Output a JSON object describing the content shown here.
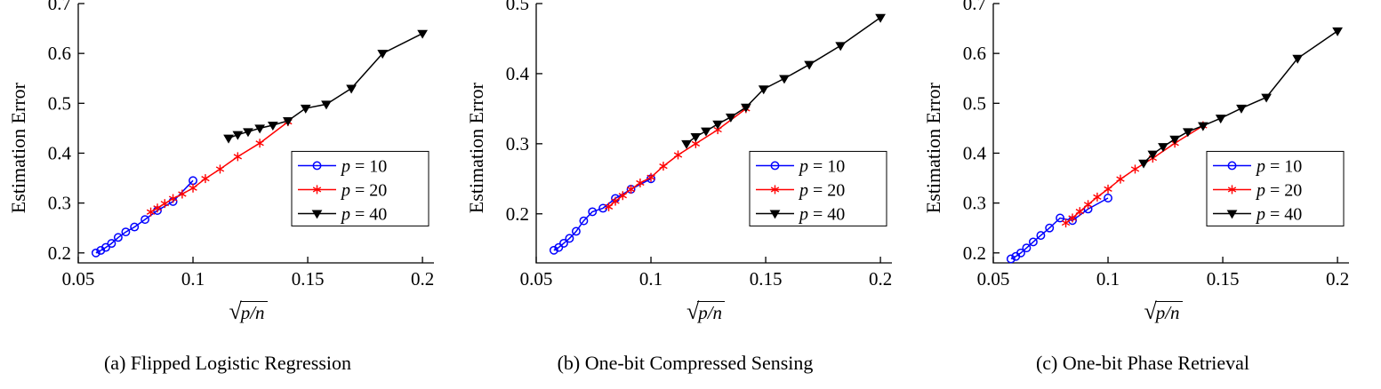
{
  "figure": {
    "captions": [
      "(a) Flipped Logistic Regression",
      "(b) One-bit Compressed Sensing",
      "(c) One-bit Phase Retrieval"
    ]
  },
  "chart_data": [
    {
      "type": "line",
      "title": "",
      "xlabel": {
        "text": "√(p/n)",
        "sign": "√",
        "radicand": "p/n"
      },
      "ylabel": "Estimation Error",
      "xlim": [
        0.05,
        0.205
      ],
      "ylim": [
        0.18,
        0.7
      ],
      "xtick_values": [
        0.05,
        0.1,
        0.15,
        0.2
      ],
      "xtick_labels": [
        "0.05",
        "0.1",
        "0.15",
        "0.2"
      ],
      "ytick_values": [
        0.2,
        0.3,
        0.4,
        0.5,
        0.6,
        0.7
      ],
      "ytick_labels": [
        "0.2",
        "0.3",
        "0.4",
        "0.5",
        "0.6",
        "0.7"
      ],
      "grid": false,
      "legend_position": "right-center",
      "series": [
        {
          "name": "p = 10",
          "color": "#0000ff",
          "marker": "circle",
          "x": [
            0.0577,
            0.0598,
            0.062,
            0.0645,
            0.0674,
            0.0707,
            0.0745,
            0.0791,
            0.0845,
            0.0913,
            0.1
          ],
          "y": [
            0.2,
            0.205,
            0.211,
            0.219,
            0.231,
            0.242,
            0.252,
            0.267,
            0.285,
            0.303,
            0.345
          ]
        },
        {
          "name": "p = 20",
          "color": "#ff0000",
          "marker": "asterisk",
          "x": [
            0.0816,
            0.0845,
            0.0877,
            0.0913,
            0.0953,
            0.1,
            0.1054,
            0.1118,
            0.1195,
            0.1291,
            0.1414
          ],
          "y": [
            0.282,
            0.29,
            0.299,
            0.309,
            0.318,
            0.33,
            0.349,
            0.368,
            0.393,
            0.42,
            0.463
          ]
        },
        {
          "name": "p = 40",
          "color": "#000000",
          "marker": "triangle-down",
          "x": [
            0.1155,
            0.1195,
            0.124,
            0.1291,
            0.1348,
            0.1414,
            0.1491,
            0.1581,
            0.169,
            0.1826,
            0.2
          ],
          "y": [
            0.43,
            0.437,
            0.443,
            0.45,
            0.456,
            0.465,
            0.49,
            0.498,
            0.53,
            0.6,
            0.64
          ]
        }
      ]
    },
    {
      "type": "line",
      "title": "",
      "xlabel": {
        "text": "√(p/n)",
        "sign": "√",
        "radicand": "p/n"
      },
      "ylabel": "Estimation Error",
      "xlim": [
        0.05,
        0.205
      ],
      "ylim": [
        0.13,
        0.5
      ],
      "xtick_values": [
        0.05,
        0.1,
        0.15,
        0.2
      ],
      "xtick_labels": [
        "0.05",
        "0.1",
        "0.15",
        "0.2"
      ],
      "ytick_values": [
        0.2,
        0.3,
        0.4,
        0.5
      ],
      "ytick_labels": [
        "0.2",
        "0.3",
        "0.4",
        "0.5"
      ],
      "grid": false,
      "legend_position": "right-center",
      "series": [
        {
          "name": "p = 10",
          "color": "#0000ff",
          "marker": "circle",
          "x": [
            0.0577,
            0.0598,
            0.062,
            0.0645,
            0.0674,
            0.0707,
            0.0745,
            0.0791,
            0.0845,
            0.0913,
            0.1
          ],
          "y": [
            0.148,
            0.152,
            0.158,
            0.165,
            0.175,
            0.19,
            0.203,
            0.208,
            0.222,
            0.235,
            0.25
          ]
        },
        {
          "name": "p = 20",
          "color": "#ff0000",
          "marker": "asterisk",
          "x": [
            0.0816,
            0.0845,
            0.0877,
            0.0913,
            0.0953,
            0.1,
            0.1054,
            0.1118,
            0.1195,
            0.1291,
            0.1414
          ],
          "y": [
            0.21,
            0.218,
            0.226,
            0.235,
            0.244,
            0.252,
            0.268,
            0.284,
            0.3,
            0.32,
            0.35
          ]
        },
        {
          "name": "p = 40",
          "color": "#000000",
          "marker": "triangle-down",
          "x": [
            0.1155,
            0.1195,
            0.124,
            0.1291,
            0.1348,
            0.1414,
            0.1491,
            0.1581,
            0.169,
            0.1826,
            0.2
          ],
          "y": [
            0.3,
            0.31,
            0.318,
            0.328,
            0.338,
            0.352,
            0.378,
            0.393,
            0.413,
            0.44,
            0.48
          ]
        }
      ]
    },
    {
      "type": "line",
      "title": "",
      "xlabel": {
        "text": "√(p/n)",
        "sign": "√",
        "radicand": "p/n"
      },
      "ylabel": "Estimation Error",
      "xlim": [
        0.05,
        0.205
      ],
      "ylim": [
        0.18,
        0.7
      ],
      "xtick_values": [
        0.05,
        0.1,
        0.15,
        0.2
      ],
      "xtick_labels": [
        "0.05",
        "0.1",
        "0.15",
        "0.2"
      ],
      "ytick_values": [
        0.2,
        0.3,
        0.4,
        0.5,
        0.6,
        0.7
      ],
      "ytick_labels": [
        "0.2",
        "0.3",
        "0.4",
        "0.5",
        "0.6",
        "0.7"
      ],
      "grid": false,
      "legend_position": "right-center",
      "series": [
        {
          "name": "p = 10",
          "color": "#0000ff",
          "marker": "circle",
          "x": [
            0.0577,
            0.0598,
            0.062,
            0.0645,
            0.0674,
            0.0707,
            0.0745,
            0.0791,
            0.0845,
            0.0913,
            0.1
          ],
          "y": [
            0.188,
            0.193,
            0.2,
            0.21,
            0.222,
            0.235,
            0.25,
            0.27,
            0.265,
            0.288,
            0.31
          ]
        },
        {
          "name": "p = 20",
          "color": "#ff0000",
          "marker": "asterisk",
          "x": [
            0.0816,
            0.0845,
            0.0877,
            0.0913,
            0.0953,
            0.1,
            0.1054,
            0.1118,
            0.1195,
            0.1291,
            0.1414
          ],
          "y": [
            0.26,
            0.27,
            0.283,
            0.297,
            0.312,
            0.328,
            0.348,
            0.368,
            0.39,
            0.42,
            0.455
          ]
        },
        {
          "name": "p = 40",
          "color": "#000000",
          "marker": "triangle-down",
          "x": [
            0.1155,
            0.1195,
            0.124,
            0.1291,
            0.1348,
            0.1414,
            0.1491,
            0.1581,
            0.169,
            0.1826,
            0.2
          ],
          "y": [
            0.38,
            0.398,
            0.413,
            0.428,
            0.443,
            0.455,
            0.47,
            0.49,
            0.512,
            0.59,
            0.645
          ]
        }
      ]
    }
  ]
}
